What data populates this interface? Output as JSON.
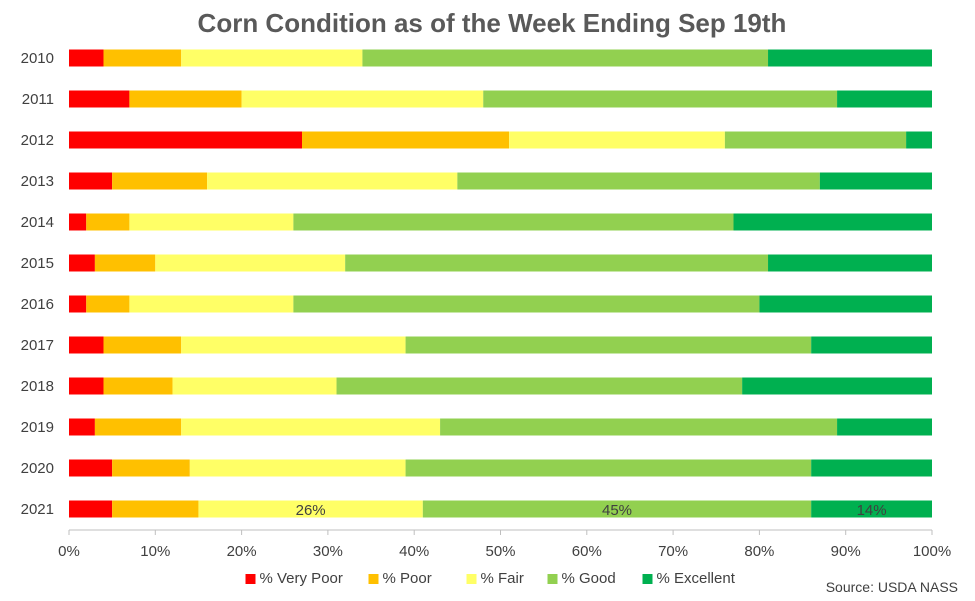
{
  "chart_data": {
    "type": "bar",
    "orientation": "horizontal",
    "stacked": true,
    "title": "Corn Condition as of the Week Ending Sep 19th",
    "categories": [
      "2010",
      "2011",
      "2012",
      "2013",
      "2014",
      "2015",
      "2016",
      "2017",
      "2018",
      "2019",
      "2020",
      "2021"
    ],
    "series": [
      {
        "name": "% Very Poor",
        "color": "#ff0000",
        "values": [
          4,
          7,
          27,
          5,
          2,
          3,
          2,
          4,
          4,
          3,
          5,
          5
        ]
      },
      {
        "name": "% Poor",
        "color": "#ffc000",
        "values": [
          9,
          13,
          24,
          11,
          5,
          7,
          5,
          9,
          8,
          10,
          9,
          10
        ]
      },
      {
        "name": "% Fair",
        "color": "#ffff66",
        "values": [
          21,
          28,
          25,
          29,
          19,
          22,
          19,
          26,
          19,
          30,
          25,
          26
        ]
      },
      {
        "name": "% Good",
        "color": "#92d050",
        "values": [
          47,
          41,
          21,
          42,
          51,
          49,
          54,
          47,
          47,
          46,
          47,
          45
        ]
      },
      {
        "name": "% Excellent",
        "color": "#00b050",
        "values": [
          19,
          11,
          3,
          13,
          23,
          19,
          20,
          14,
          22,
          11,
          14,
          14
        ]
      }
    ],
    "data_labels": [
      {
        "category": "2021",
        "series": "% Fair",
        "text": "26%"
      },
      {
        "category": "2021",
        "series": "% Good",
        "text": "45%"
      },
      {
        "category": "2021",
        "series": "% Excellent",
        "text": "14%"
      }
    ],
    "xlim": [
      0,
      100
    ],
    "x_ticks": [
      "0%",
      "10%",
      "20%",
      "30%",
      "40%",
      "50%",
      "60%",
      "70%",
      "80%",
      "90%",
      "100%"
    ],
    "grid": false,
    "legend_position": "bottom",
    "source": "Source: USDA NASS"
  }
}
